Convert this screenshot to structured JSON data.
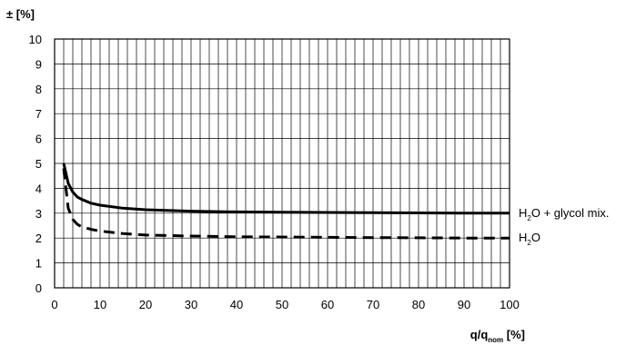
{
  "chart_data": {
    "type": "line",
    "ylabel": "± [%]",
    "xlabel": {
      "main": "q/q",
      "sub": "nom",
      "unit": " [%]"
    },
    "xlim": [
      0,
      100
    ],
    "ylim": [
      0,
      10
    ],
    "x_ticks": [
      0,
      10,
      20,
      30,
      40,
      50,
      60,
      70,
      80,
      90,
      100
    ],
    "y_ticks": [
      0,
      1,
      2,
      3,
      4,
      5,
      6,
      7,
      8,
      9,
      10
    ],
    "grid": {
      "x_step": 2,
      "y_step": 1
    },
    "series": [
      {
        "label": {
          "pre": "H",
          "sub": "2",
          "post": "O + glycol mix."
        },
        "style": "solid",
        "color": "#000000",
        "x": [
          2,
          2.5,
          3,
          4,
          5,
          6,
          8,
          10,
          15,
          20,
          30,
          40,
          50,
          60,
          70,
          80,
          90,
          100
        ],
        "y": [
          5.0,
          4.6,
          4.2,
          3.85,
          3.65,
          3.55,
          3.4,
          3.32,
          3.2,
          3.14,
          3.08,
          3.05,
          3.04,
          3.03,
          3.02,
          3.01,
          3.0,
          3.0
        ]
      },
      {
        "label": {
          "pre": "H",
          "sub": "2",
          "post": "O"
        },
        "style": "dashed",
        "color": "#000000",
        "x": [
          2,
          2.5,
          3,
          4,
          5,
          6,
          8,
          10,
          15,
          20,
          30,
          40,
          50,
          60,
          70,
          80,
          90,
          100
        ],
        "y": [
          4.8,
          4.0,
          3.2,
          2.75,
          2.55,
          2.45,
          2.35,
          2.28,
          2.18,
          2.12,
          2.08,
          2.05,
          2.04,
          2.03,
          2.02,
          2.01,
          2.0,
          2.0
        ]
      }
    ]
  }
}
